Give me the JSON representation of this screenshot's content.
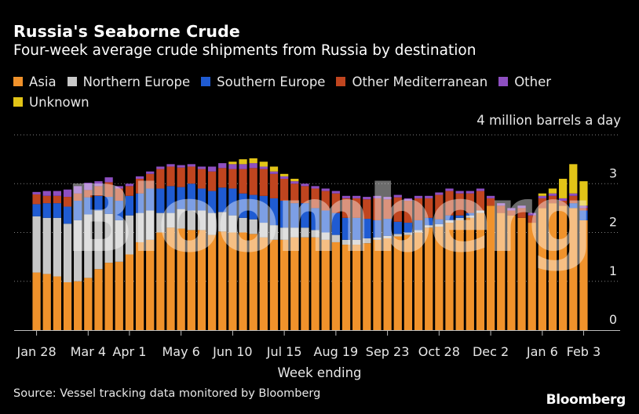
{
  "title": "Russia's Seaborne Crude",
  "subtitle": "Four-week average crude shipments from Russia by destination",
  "unit_label": "4 million barrels a day",
  "source": "Source: Vessel tracking data monitored by Bloomberg",
  "brand": "Bloomberg",
  "watermark": "Bloomberg",
  "colors": {
    "background": "#000000",
    "text": "#e8e8e8",
    "grid": "#808080"
  },
  "chart_data": {
    "type": "bar",
    "stacked": true,
    "title": "Russia's Seaborne Crude",
    "subtitle": "Four-week average crude shipments from Russia by destination",
    "xlabel": "Week ending",
    "ylabel": "4 million barrels a day",
    "ylim": [
      0,
      4
    ],
    "yticks": [
      0,
      1,
      2,
      3
    ],
    "y_axis_side": "right",
    "grid": true,
    "legend_position": "top",
    "x_tick_labels": [
      "Jan 28",
      "Mar 4",
      "Apr 1",
      "May 6",
      "Jun 10",
      "Jul 15",
      "Aug 19",
      "Sep 23",
      "Oct 28",
      "Dec 2",
      "Jan 6",
      "Feb 3"
    ],
    "x_tick_positions": [
      0,
      5,
      9,
      14,
      19,
      24,
      29,
      34,
      39,
      44,
      49,
      53
    ],
    "series": [
      {
        "name": "Asia",
        "color": "#f0922b",
        "values": [
          1.18,
          1.15,
          1.1,
          0.98,
          1.0,
          1.07,
          1.25,
          1.38,
          1.4,
          1.55,
          1.8,
          1.85,
          2.0,
          2.1,
          2.08,
          2.05,
          2.05,
          1.95,
          2.02,
          2.0,
          2.0,
          1.97,
          1.9,
          1.85,
          1.85,
          1.9,
          1.9,
          1.9,
          1.85,
          1.8,
          1.75,
          1.75,
          1.78,
          1.85,
          1.88,
          1.92,
          1.95,
          2.0,
          2.1,
          2.12,
          2.2,
          2.25,
          2.3,
          2.4,
          2.55,
          2.4,
          2.35,
          2.3,
          2.2,
          2.5,
          2.6,
          2.55,
          2.5,
          2.25
        ]
      },
      {
        "name": "Northern Europe",
        "color": "#c8c8c8",
        "values": [
          1.15,
          1.15,
          1.2,
          1.2,
          1.25,
          1.3,
          1.2,
          1.0,
          0.85,
          0.8,
          0.6,
          0.6,
          0.4,
          0.3,
          0.4,
          0.4,
          0.4,
          0.45,
          0.4,
          0.35,
          0.3,
          0.3,
          0.3,
          0.3,
          0.25,
          0.2,
          0.2,
          0.15,
          0.15,
          0.15,
          0.1,
          0.1,
          0.1,
          0.05,
          0.05,
          0.05,
          0.05,
          0.05,
          0.05,
          0.05,
          0.05,
          0.05,
          0.05,
          0.05,
          0.0,
          0.0,
          0.0,
          0.0,
          0.0,
          0.0,
          0.0,
          0.0,
          0.0,
          0.0
        ]
      },
      {
        "name": "Southern Europe",
        "color": "#1f5bd2",
        "values": [
          0.25,
          0.3,
          0.3,
          0.35,
          0.4,
          0.35,
          0.3,
          0.35,
          0.4,
          0.4,
          0.4,
          0.45,
          0.5,
          0.55,
          0.45,
          0.55,
          0.45,
          0.45,
          0.5,
          0.55,
          0.5,
          0.5,
          0.55,
          0.55,
          0.55,
          0.5,
          0.5,
          0.45,
          0.45,
          0.45,
          0.45,
          0.45,
          0.4,
          0.35,
          0.35,
          0.25,
          0.2,
          0.2,
          0.15,
          0.1,
          0.1,
          0.05,
          0.05,
          0.0,
          0.0,
          0.0,
          0.0,
          0.0,
          0.0,
          0.0,
          0.0,
          0.0,
          0.1,
          0.2
        ]
      },
      {
        "name": "Other Mediterranean",
        "color": "#c0451f",
        "values": [
          0.2,
          0.15,
          0.15,
          0.2,
          0.15,
          0.15,
          0.2,
          0.3,
          0.25,
          0.2,
          0.3,
          0.3,
          0.4,
          0.4,
          0.4,
          0.35,
          0.4,
          0.4,
          0.4,
          0.4,
          0.5,
          0.55,
          0.55,
          0.5,
          0.45,
          0.4,
          0.35,
          0.4,
          0.4,
          0.4,
          0.4,
          0.4,
          0.4,
          0.45,
          0.4,
          0.5,
          0.45,
          0.45,
          0.4,
          0.5,
          0.5,
          0.45,
          0.4,
          0.4,
          0.15,
          0.15,
          0.1,
          0.2,
          0.15,
          0.2,
          0.15,
          0.1,
          0.15,
          0.05
        ]
      },
      {
        "name": "Other",
        "color": "#8e4fc1",
        "values": [
          0.05,
          0.1,
          0.1,
          0.15,
          0.15,
          0.15,
          0.1,
          0.1,
          0.05,
          0.05,
          0.05,
          0.05,
          0.05,
          0.05,
          0.05,
          0.05,
          0.05,
          0.1,
          0.1,
          0.1,
          0.1,
          0.1,
          0.05,
          0.05,
          0.05,
          0.05,
          0.05,
          0.05,
          0.05,
          0.05,
          0.05,
          0.05,
          0.05,
          0.05,
          0.05,
          0.05,
          0.05,
          0.05,
          0.05,
          0.05,
          0.05,
          0.05,
          0.05,
          0.05,
          0.05,
          0.05,
          0.05,
          0.05,
          0.05,
          0.05,
          0.05,
          0.05,
          0.05,
          0.05
        ]
      },
      {
        "name": "Unknown",
        "color": "#e2c417",
        "values": [
          0.0,
          0.0,
          0.0,
          0.0,
          0.0,
          0.0,
          0.0,
          0.0,
          0.0,
          0.0,
          0.0,
          0.0,
          0.0,
          0.0,
          0.0,
          0.0,
          0.0,
          0.0,
          0.0,
          0.05,
          0.1,
          0.1,
          0.1,
          0.1,
          0.05,
          0.05,
          0.0,
          0.0,
          0.0,
          0.0,
          0.0,
          0.0,
          0.0,
          0.0,
          0.0,
          0.0,
          0.0,
          0.0,
          0.0,
          0.0,
          0.0,
          0.0,
          0.0,
          0.0,
          0.0,
          0.0,
          0.0,
          0.0,
          0.0,
          0.05,
          0.1,
          0.4,
          0.6,
          0.5
        ]
      }
    ]
  }
}
